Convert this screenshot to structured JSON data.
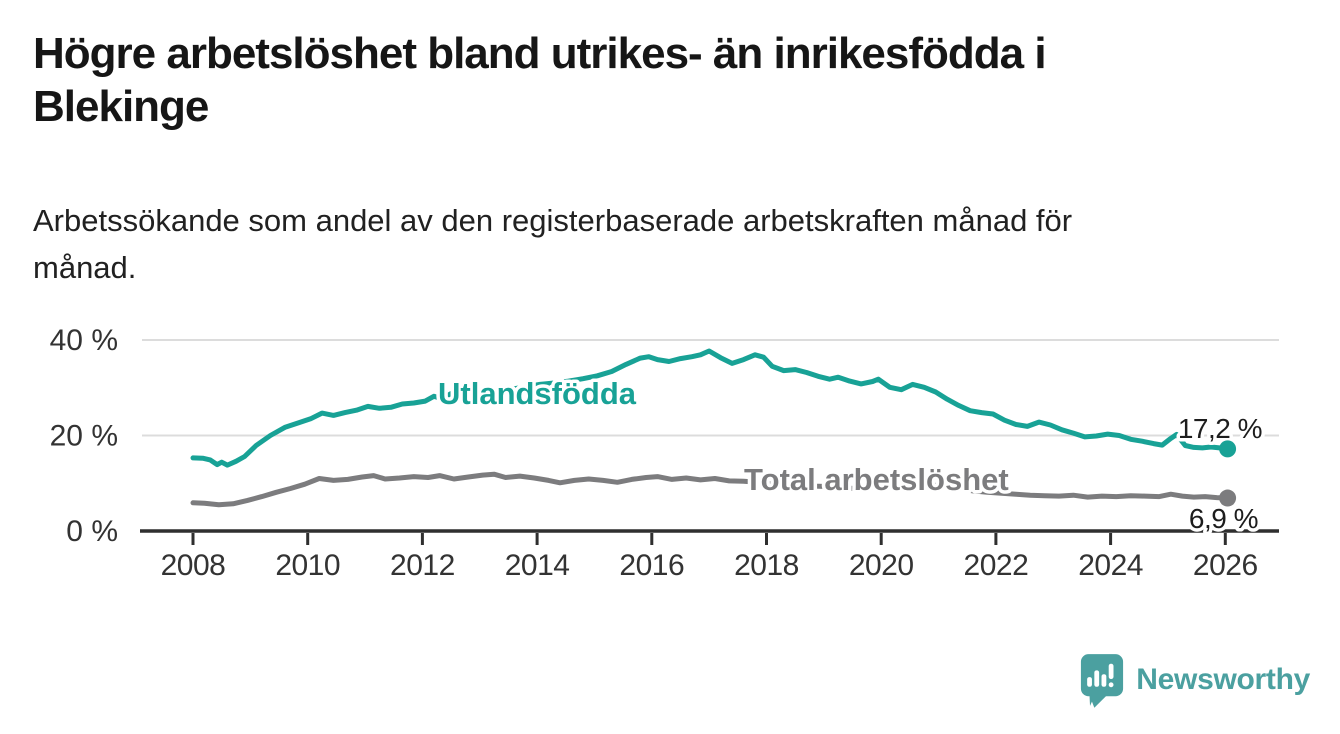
{
  "chart_data": {
    "type": "line",
    "title": "Högre arbetslöshet bland utrikes- än inrikesfödda i Blekinge",
    "title_lines": [
      "Högre arbetslöshet bland utrikes- än inrikesfödda i",
      "Blekinge"
    ],
    "subtitle": "Arbetssökande som andel av den registerbaserade arbetskraften månad för månad.",
    "subtitle_lines": [
      "Arbetssökande som andel av den registerbaserade arbetskraften månad för",
      "månad."
    ],
    "xlabel": "",
    "ylabel": "",
    "unit": "%",
    "x_ticks": [
      2008,
      2010,
      2012,
      2014,
      2016,
      2018,
      2020,
      2022,
      2024,
      2026
    ],
    "y_ticks": [
      {
        "value": 0,
        "label": "0 %"
      },
      {
        "value": 20,
        "label": "20 %"
      },
      {
        "value": 40,
        "label": "40 %"
      }
    ],
    "x_range_years": [
      2007.1,
      2027.0
    ],
    "y_range": [
      0,
      42
    ],
    "grid": "horizontal",
    "legend_position": "inline-labels-on-lines",
    "series": [
      {
        "name": "Utlandsfödda",
        "color": "#18a296",
        "end_value": 17.2,
        "end_label": "17,2 %",
        "points": [
          [
            2008.0,
            15.3
          ],
          [
            2008.17,
            15.25
          ],
          [
            2008.3,
            14.9
          ],
          [
            2008.42,
            13.9
          ],
          [
            2008.5,
            14.4
          ],
          [
            2008.6,
            13.8
          ],
          [
            2008.75,
            14.6
          ],
          [
            2008.9,
            15.6
          ],
          [
            2009.1,
            17.9
          ],
          [
            2009.35,
            20.0
          ],
          [
            2009.6,
            21.7
          ],
          [
            2009.85,
            22.7
          ],
          [
            2010.05,
            23.5
          ],
          [
            2010.25,
            24.7
          ],
          [
            2010.45,
            24.2
          ],
          [
            2010.65,
            24.8
          ],
          [
            2010.85,
            25.3
          ],
          [
            2011.05,
            26.1
          ],
          [
            2011.25,
            25.7
          ],
          [
            2011.45,
            25.9
          ],
          [
            2011.65,
            26.6
          ],
          [
            2011.85,
            26.8
          ],
          [
            2012.05,
            27.2
          ],
          [
            2012.2,
            28.2
          ],
          [
            2012.35,
            27.7
          ],
          [
            2012.5,
            28.8
          ],
          [
            2012.65,
            28.1
          ],
          [
            2012.85,
            28.5
          ],
          [
            2013.05,
            28.9
          ],
          [
            2013.3,
            29.2
          ],
          [
            2013.55,
            29.7
          ],
          [
            2013.8,
            30.2
          ],
          [
            2014.05,
            30.7
          ],
          [
            2014.3,
            31.0
          ],
          [
            2014.55,
            31.4
          ],
          [
            2014.8,
            31.9
          ],
          [
            2015.05,
            32.5
          ],
          [
            2015.3,
            33.4
          ],
          [
            2015.55,
            34.9
          ],
          [
            2015.8,
            36.2
          ],
          [
            2015.95,
            36.5
          ],
          [
            2016.1,
            35.9
          ],
          [
            2016.3,
            35.5
          ],
          [
            2016.5,
            36.1
          ],
          [
            2016.7,
            36.5
          ],
          [
            2016.85,
            36.9
          ],
          [
            2017.0,
            37.7
          ],
          [
            2017.2,
            36.3
          ],
          [
            2017.4,
            35.1
          ],
          [
            2017.6,
            35.9
          ],
          [
            2017.8,
            36.9
          ],
          [
            2017.95,
            36.4
          ],
          [
            2018.1,
            34.5
          ],
          [
            2018.3,
            33.6
          ],
          [
            2018.5,
            33.8
          ],
          [
            2018.7,
            33.2
          ],
          [
            2018.9,
            32.4
          ],
          [
            2019.1,
            31.8
          ],
          [
            2019.25,
            32.2
          ],
          [
            2019.45,
            31.4
          ],
          [
            2019.65,
            30.8
          ],
          [
            2019.85,
            31.3
          ],
          [
            2019.95,
            31.8
          ],
          [
            2020.15,
            30.1
          ],
          [
            2020.35,
            29.6
          ],
          [
            2020.55,
            30.7
          ],
          [
            2020.75,
            30.1
          ],
          [
            2020.95,
            29.1
          ],
          [
            2021.15,
            27.6
          ],
          [
            2021.35,
            26.3
          ],
          [
            2021.55,
            25.2
          ],
          [
            2021.75,
            24.8
          ],
          [
            2021.95,
            24.5
          ],
          [
            2022.15,
            23.2
          ],
          [
            2022.35,
            22.3
          ],
          [
            2022.55,
            21.9
          ],
          [
            2022.75,
            22.8
          ],
          [
            2022.95,
            22.2
          ],
          [
            2023.15,
            21.2
          ],
          [
            2023.35,
            20.5
          ],
          [
            2023.55,
            19.7
          ],
          [
            2023.75,
            19.9
          ],
          [
            2023.95,
            20.3
          ],
          [
            2024.15,
            20.0
          ],
          [
            2024.35,
            19.2
          ],
          [
            2024.55,
            18.8
          ],
          [
            2024.75,
            18.3
          ],
          [
            2024.9,
            18.0
          ],
          [
            2025.05,
            19.4
          ],
          [
            2025.15,
            20.2
          ],
          [
            2025.3,
            17.9
          ],
          [
            2025.45,
            17.5
          ],
          [
            2025.6,
            17.4
          ],
          [
            2025.75,
            17.6
          ],
          [
            2025.9,
            17.4
          ],
          [
            2026.04,
            17.2
          ]
        ]
      },
      {
        "name": "Total arbetslöshet",
        "color": "#7c7c7e",
        "end_value": 6.9,
        "end_label": "6,9 %",
        "points": [
          [
            2008.0,
            5.9
          ],
          [
            2008.2,
            5.8
          ],
          [
            2008.45,
            5.5
          ],
          [
            2008.7,
            5.7
          ],
          [
            2008.95,
            6.4
          ],
          [
            2009.2,
            7.2
          ],
          [
            2009.45,
            8.1
          ],
          [
            2009.7,
            8.9
          ],
          [
            2009.95,
            9.8
          ],
          [
            2010.2,
            11.0
          ],
          [
            2010.45,
            10.6
          ],
          [
            2010.7,
            10.8
          ],
          [
            2010.95,
            11.3
          ],
          [
            2011.15,
            11.6
          ],
          [
            2011.35,
            10.9
          ],
          [
            2011.6,
            11.1
          ],
          [
            2011.85,
            11.4
          ],
          [
            2012.1,
            11.2
          ],
          [
            2012.3,
            11.6
          ],
          [
            2012.55,
            10.9
          ],
          [
            2012.8,
            11.3
          ],
          [
            2013.05,
            11.7
          ],
          [
            2013.25,
            11.9
          ],
          [
            2013.45,
            11.2
          ],
          [
            2013.7,
            11.5
          ],
          [
            2013.95,
            11.1
          ],
          [
            2014.2,
            10.6
          ],
          [
            2014.4,
            10.1
          ],
          [
            2014.65,
            10.6
          ],
          [
            2014.9,
            10.9
          ],
          [
            2015.15,
            10.6
          ],
          [
            2015.4,
            10.2
          ],
          [
            2015.65,
            10.8
          ],
          [
            2015.9,
            11.2
          ],
          [
            2016.1,
            11.4
          ],
          [
            2016.35,
            10.8
          ],
          [
            2016.6,
            11.1
          ],
          [
            2016.85,
            10.7
          ],
          [
            2017.1,
            11.0
          ],
          [
            2017.35,
            10.5
          ],
          [
            2017.6,
            10.4
          ],
          [
            2017.85,
            10.2
          ],
          [
            2018.1,
            9.9
          ],
          [
            2018.35,
            9.6
          ],
          [
            2018.6,
            9.7
          ],
          [
            2018.85,
            9.4
          ],
          [
            2019.1,
            9.3
          ],
          [
            2019.35,
            9.0
          ],
          [
            2019.6,
            8.9
          ],
          [
            2019.85,
            9.2
          ],
          [
            2020.1,
            9.4
          ],
          [
            2020.35,
            9.9
          ],
          [
            2020.6,
            10.1
          ],
          [
            2020.85,
            9.7
          ],
          [
            2021.1,
            9.4
          ],
          [
            2021.35,
            8.9
          ],
          [
            2021.6,
            8.4
          ],
          [
            2021.85,
            8.1
          ],
          [
            2022.1,
            7.9
          ],
          [
            2022.35,
            7.7
          ],
          [
            2022.6,
            7.5
          ],
          [
            2022.85,
            7.4
          ],
          [
            2023.1,
            7.3
          ],
          [
            2023.35,
            7.5
          ],
          [
            2023.6,
            7.1
          ],
          [
            2023.85,
            7.3
          ],
          [
            2024.1,
            7.2
          ],
          [
            2024.35,
            7.4
          ],
          [
            2024.6,
            7.3
          ],
          [
            2024.85,
            7.2
          ],
          [
            2025.05,
            7.7
          ],
          [
            2025.25,
            7.3
          ],
          [
            2025.45,
            7.1
          ],
          [
            2025.65,
            7.2
          ],
          [
            2025.85,
            7.0
          ],
          [
            2026.04,
            6.9
          ]
        ]
      }
    ]
  },
  "colors": {
    "background": "#ffffff",
    "gridline": "#dcdcdc",
    "axis": "#2f2f2f",
    "tick_label": "#333333",
    "value_label": "#1d1d1d",
    "series_utlandsfodda": "#18a296",
    "series_total": "#7c7c7e"
  },
  "branding": {
    "logo_text": "Newsworthy",
    "logo_color": "#4ba0a0",
    "logo_icon": "bar-chart-speech-bubble-icon"
  }
}
